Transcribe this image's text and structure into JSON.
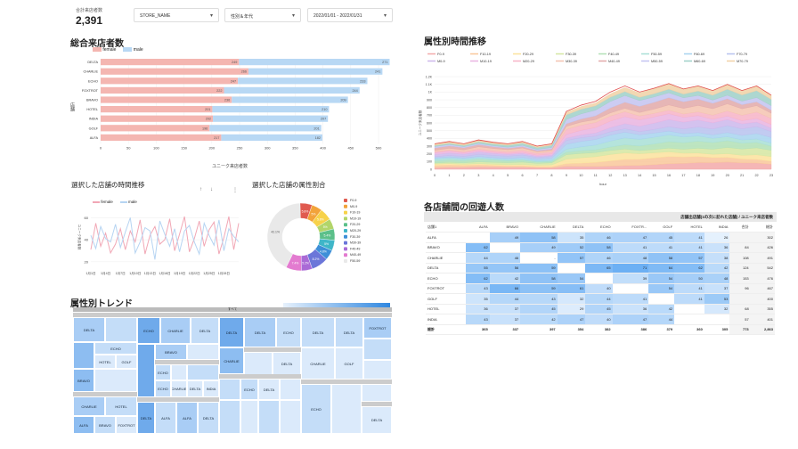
{
  "scorecard": {
    "label": "合計来店者数",
    "value": "2,391"
  },
  "filters": [
    {
      "label": "STORE_NAME"
    },
    {
      "label": "性別＆年代"
    },
    {
      "label": "2022/01/01 - 2022/01/31"
    }
  ],
  "bar_chart": {
    "title": "総合来店者数",
    "legend": [
      "female",
      "male"
    ],
    "xlabel": "ユニーク来店者数",
    "ylabel": "店舗",
    "xticks": [
      "0",
      "50",
      "100",
      "150",
      "200",
      "250",
      "300",
      "350",
      "400",
      "450",
      "500"
    ]
  },
  "line_chart": {
    "title": "選択した店舗の時間推移",
    "legend": [
      "female",
      "male"
    ],
    "ylabel": "ユニーク来店者数",
    "yticks": [
      "60",
      "40",
      "20"
    ],
    "xticks": [
      "1月1日",
      "1月4日",
      "1月7日",
      "1月10日",
      "1月13日",
      "1月16日",
      "1月19日",
      "1月22日",
      "1月25日",
      "1月28日"
    ],
    "controls": [
      "↑",
      "↓",
      "⋮"
    ]
  },
  "donut_chart": {
    "title": "選択した店舗の属性割合",
    "center_label": "",
    "big_label": "42.1%"
  },
  "area_chart": {
    "title": "属性別時間推移",
    "ylabel": "ユニーク来店者数",
    "xlabel": "hour",
    "yticks": [
      "1.2K",
      "1.1K",
      "1K",
      "900",
      "800",
      "700",
      "600",
      "500",
      "400",
      "300",
      "200",
      "100",
      "0"
    ],
    "xticks": [
      "0",
      "1",
      "2",
      "3",
      "4",
      "5",
      "6",
      "7",
      "8",
      "9",
      "10",
      "11",
      "12",
      "13",
      "14",
      "15",
      "16",
      "17",
      "18",
      "19",
      "20",
      "21",
      "22",
      "23"
    ]
  },
  "treemap": {
    "title": "属性別トレンド",
    "top_header": "すべて"
  },
  "crosstab": {
    "title": "各店舗間の回遊人数",
    "header_right": "店舗出店舗(1の次に訪れた店舗) / ユニーク来店者数",
    "columns": [
      "店舗1",
      "ALFA",
      "BRAVO",
      "CHARLIE",
      "DELTA",
      "ECHO",
      "FOXTR...",
      "GOLF",
      "HOTEL",
      "INDIA",
      "合計",
      "総計"
    ],
    "rows": [
      [
        "ALFA",
        "",
        "49",
        "58",
        "35",
        "46",
        "47",
        "45",
        "41",
        "26",
        "",
        "302"
      ],
      [
        "BRAVO",
        "62",
        "",
        "49",
        "52",
        "58",
        "41",
        "41",
        "41",
        "36",
        "84",
        "426"
      ],
      [
        "CHARLIE",
        "44",
        "46",
        "-",
        "57",
        "46",
        "48",
        "58",
        "57",
        "38",
        "108",
        "491"
      ],
      [
        "DELTA",
        "55",
        "56",
        "59",
        "",
        "65",
        "71",
        "64",
        "62",
        "42",
        "124",
        "542"
      ],
      [
        "ECHO",
        "62",
        "42",
        "58",
        "54",
        "",
        "39",
        "54",
        "50",
        "48",
        "153",
        "476"
      ],
      [
        "FOXTROT",
        "43",
        "66",
        "59",
        "61",
        "40",
        "",
        "54",
        "41",
        "37",
        "96",
        "467"
      ],
      [
        "GOLF",
        "35",
        "44",
        "43",
        "32",
        "44",
        "41",
        "",
        "41",
        "53",
        "",
        "400"
      ],
      [
        "HOTEL",
        "36",
        "37",
        "45",
        "29",
        "45",
        "36",
        "42",
        "",
        "32",
        "68",
        "355"
      ],
      [
        "INDIA",
        "43",
        "37",
        "42",
        "47",
        "40",
        "47",
        "44",
        "",
        "",
        "57",
        "401"
      ],
      [
        "総計",
        "365",
        "337",
        "397",
        "354",
        "382",
        "386",
        "379",
        "360",
        "305",
        "773",
        "2,863"
      ]
    ]
  },
  "chart_data": [
    {
      "type": "bar",
      "title": "総合来店者数",
      "categories": [
        "DELTA",
        "CHARLIE",
        "ECHO",
        "FOXTROT",
        "BRAVO",
        "HOTEL",
        "INDIA",
        "GOLF",
        "ALFA"
      ],
      "series": [
        {
          "name": "female",
          "values": [
            249,
            266,
            247,
            222,
            236,
            201,
            202,
            196,
            217
          ]
        },
        {
          "name": "male",
          "values": [
            271,
            241,
            233,
            244,
            209,
            210,
            207,
            201,
            182
          ]
        }
      ],
      "xlabel": "ユニーク来店者数",
      "ylabel": "店舗",
      "xlim": [
        0,
        500
      ],
      "stacked": true,
      "colors": [
        "#f4b6b1",
        "#b8d8f4"
      ]
    },
    {
      "type": "line",
      "title": "選択した店舗の時間推移",
      "x": [
        "1/1",
        "1/2",
        "1/3",
        "1/4",
        "1/5",
        "1/6",
        "1/7",
        "1/8",
        "1/9",
        "1/10",
        "1/11",
        "1/12",
        "1/13",
        "1/14",
        "1/15",
        "1/16",
        "1/17",
        "1/18",
        "1/19",
        "1/20",
        "1/21",
        "1/22",
        "1/23",
        "1/24",
        "1/25",
        "1/26",
        "1/27",
        "1/28",
        "1/29",
        "1/30",
        "1/31"
      ],
      "series": [
        {
          "name": "female",
          "values": [
            31,
            55,
            34,
            46,
            28,
            36,
            50,
            31,
            48,
            38,
            58,
            27,
            44,
            52,
            36,
            40,
            59,
            30,
            45,
            61,
            29,
            41,
            57,
            34,
            49,
            56,
            27,
            42,
            61,
            31,
            55
          ],
          "color": "#f1a7b5"
        },
        {
          "name": "male",
          "values": [
            44,
            32,
            52,
            41,
            38,
            54,
            33,
            47,
            60,
            28,
            38,
            51,
            48,
            22,
            57,
            45,
            34,
            50,
            29,
            48,
            53,
            38,
            27,
            55,
            44,
            35,
            58,
            30,
            50,
            43,
            38
          ],
          "color": "#b6d4f2"
        }
      ],
      "ylim": [
        15,
        70
      ]
    },
    {
      "type": "pie",
      "title": "選択した店舗の属性割合",
      "labels": [
        "F0-9",
        "M0-9",
        "F10-19",
        "M10-19",
        "F20-29",
        "M20-29",
        "F30-39",
        "M30-39",
        "F40-49",
        "M40-49",
        "F50-59"
      ],
      "values": [
        5.8,
        5.0,
        5.8,
        5.0,
        5.4,
        5.0,
        4.8,
        8.2,
        5.2,
        7.4,
        42.1
      ],
      "colors": [
        "#e05a4f",
        "#f2a33a",
        "#f7d24a",
        "#b2d56a",
        "#5cc08a",
        "#3fb6c8",
        "#3e8fd8",
        "#6b76d9",
        "#a96ad6",
        "#e37bd0",
        "#e9e9e9"
      ]
    },
    {
      "type": "area",
      "title": "属性別時間推移",
      "x": [
        0,
        1,
        2,
        3,
        4,
        5,
        6,
        7,
        8,
        9,
        10,
        11,
        12,
        13,
        14,
        15,
        16,
        17,
        18,
        19,
        20,
        21,
        22,
        23
      ],
      "series_names": [
        "F0-9",
        "F10-19",
        "F20-29",
        "F30-39",
        "F40-49",
        "F50-59",
        "F60-69",
        "F70-79",
        "M0-9",
        "M10-19",
        "M20-29",
        "M30-39",
        "M40-49",
        "M50-59",
        "M60-69",
        "M70-79"
      ],
      "totals": [
        330,
        360,
        330,
        380,
        350,
        330,
        360,
        300,
        330,
        750,
        830,
        880,
        1000,
        1080,
        1000,
        1050,
        1110,
        1040,
        1080,
        1020,
        1100,
        1020,
        1080,
        960
      ],
      "ylim": [
        0,
        1200
      ]
    }
  ]
}
